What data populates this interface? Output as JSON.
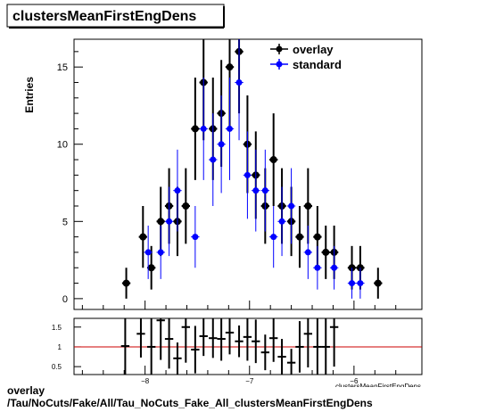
{
  "chart_data": [
    {
      "type": "scatter",
      "title": "clustersMeanFirstEngDens",
      "xlabel": "clustersMeanFirstEngDens",
      "ylabel": "Entries",
      "xlim": [
        -8.68,
        -5.35
      ],
      "ylim": [
        -0.7,
        16.8
      ],
      "xticks": [
        -8,
        -7,
        -6
      ],
      "xtick_labels": [
        "−8",
        "−7",
        "−6"
      ],
      "yticks": [
        0,
        5,
        10,
        15
      ],
      "yticks_labels": [
        "0",
        "5",
        "10",
        "15"
      ],
      "legend_position": "top-right",
      "series": [
        {
          "name": "overlay",
          "color": "#000000",
          "x": [
            -8.18,
            -8.02,
            -7.94,
            -7.85,
            -7.77,
            -7.69,
            -7.61,
            -7.52,
            -7.44,
            -7.35,
            -7.27,
            -7.19,
            -7.1,
            -7.02,
            -6.94,
            -6.85,
            -6.77,
            -6.69,
            -6.6,
            -6.52,
            -6.44,
            -6.35,
            -6.27,
            -6.19,
            -6.02,
            -5.94,
            -5.77
          ],
          "y": [
            1,
            4,
            2,
            5,
            6,
            5,
            6,
            11,
            14,
            11,
            12,
            15,
            16,
            10,
            8,
            6,
            9,
            6,
            5,
            4,
            6,
            4,
            3,
            3,
            2,
            2,
            1
          ],
          "yerr": [
            1,
            2,
            1.41,
            2.24,
            2.45,
            2.24,
            2.45,
            3.32,
            3.74,
            3.32,
            3.46,
            3.87,
            4,
            3.16,
            2.83,
            2.45,
            3,
            2.45,
            2.24,
            2,
            2.45,
            2,
            1.73,
            1.73,
            1.41,
            1.41,
            1
          ],
          "xerr": 0.04
        },
        {
          "name": "standard",
          "color": "#0000ff",
          "x": [
            -7.97,
            -7.85,
            -7.77,
            -7.69,
            -7.52,
            -7.44,
            -7.35,
            -7.27,
            -7.19,
            -7.1,
            -7.02,
            -6.94,
            -6.85,
            -6.77,
            -6.69,
            -6.6,
            -6.44,
            -6.35,
            -6.19,
            -6.02,
            -5.94
          ],
          "y": [
            3,
            3,
            5,
            7,
            4,
            11,
            9,
            10,
            11,
            14,
            8,
            7,
            7,
            4,
            5,
            6,
            3,
            2,
            2,
            1,
            1
          ],
          "yerr": [
            1.73,
            1.73,
            2.24,
            2.65,
            2,
            3.32,
            3,
            3.16,
            3.32,
            3.74,
            2.83,
            2.65,
            2.65,
            2,
            2.24,
            2.45,
            1.73,
            1.41,
            1.41,
            1,
            1
          ],
          "xerr": 0.04
        }
      ]
    },
    {
      "type": "scatter",
      "title": "",
      "xlabel": "clustersMeanFirstEngDens",
      "ylabel": "",
      "xlim": [
        -8.68,
        -5.35
      ],
      "ylim": [
        0.3,
        1.72
      ],
      "xticks": [
        -8,
        -7,
        -6
      ],
      "xtick_labels": [
        "−8",
        "−7",
        "−6"
      ],
      "yticks": [
        0.5,
        1,
        1.5
      ],
      "ytick_labels": [
        "0.5",
        "1",
        "1.5"
      ],
      "reference_line": 1,
      "series": [
        {
          "name": "ratio",
          "color": "#000000",
          "x": [
            -8.19,
            -8.04,
            -7.94,
            -7.85,
            -7.77,
            -7.69,
            -7.61,
            -7.52,
            -7.44,
            -7.35,
            -7.27,
            -7.19,
            -7.1,
            -7.02,
            -6.94,
            -6.85,
            -6.77,
            -6.69,
            -6.6,
            -6.52,
            -6.44,
            -6.35,
            -6.27,
            -6.19
          ],
          "y": [
            1.02,
            1.33,
            1.0,
            1.67,
            1.2,
            0.71,
            1.5,
            0.93,
            1.27,
            1.22,
            1.2,
            1.36,
            1.14,
            1.25,
            1.14,
            0.86,
            1.22,
            0.75,
            0.6,
            1.0,
            1.33,
            1.0,
            1.0,
            1.5
          ],
          "yerr": [
            1.1,
            0.6,
            1.0,
            1.0,
            0.75,
            0.4,
            0.9,
            0.6,
            0.5,
            0.5,
            0.55,
            0.55,
            0.4,
            0.6,
            0.55,
            0.45,
            0.6,
            0.45,
            0.35,
            0.65,
            0.85,
            0.75,
            0.75,
            1.0
          ],
          "xerr": 0.04
        }
      ]
    }
  ],
  "legend": {
    "overlay_label": "overlay",
    "standard_label": "standard"
  },
  "colors": {
    "overlay": "#000000",
    "standard": "#0000ff",
    "ratio_line": "#cc0000"
  },
  "caption": {
    "line1": "overlay",
    "line2": "/Tau/NoCuts/Fake/All/Tau_NoCuts_Fake_All_clustersMeanFirstEngDens"
  }
}
